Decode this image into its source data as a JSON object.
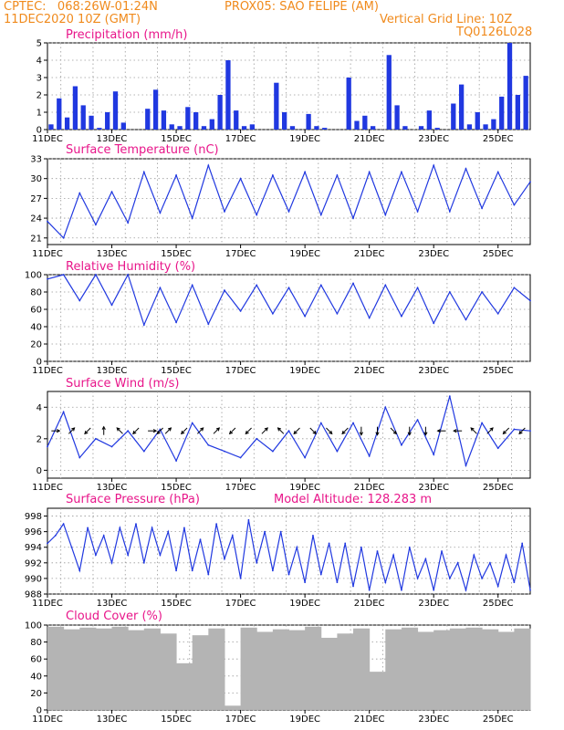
{
  "header": {
    "line1_left": "CPTEC:   068:26W-01:24N",
    "line1_right": "PROX05: SAO FELIPE (AM)",
    "line2_left": "11DEC2020 10Z (GMT)",
    "line2_right": "Vertical Grid Line: 10Z",
    "line3_right": "TQ0126L028"
  },
  "colors": {
    "header": "#f08a1c",
    "title": "#e8168a",
    "series": "#2038e0",
    "cloud": "#b4b4b4"
  },
  "chart_data": [
    {
      "type": "bar",
      "title": "Precipitation (mm/h)",
      "ylim": [
        0,
        5
      ],
      "yticks": [
        0,
        1,
        2,
        3,
        4,
        5
      ],
      "xticks": [
        "11DEC",
        "13DEC",
        "15DEC",
        "17DEC",
        "19DEC",
        "21DEC",
        "23DEC",
        "25DEC"
      ],
      "x": [
        "11DEC 00Z",
        "11DEC 06Z",
        "11DEC 12Z",
        "11DEC 18Z",
        "12DEC 00Z",
        "12DEC 06Z",
        "12DEC 12Z",
        "12DEC 18Z",
        "13DEC 00Z",
        "13DEC 06Z",
        "13DEC 12Z",
        "13DEC 18Z",
        "14DEC 00Z",
        "14DEC 06Z",
        "14DEC 12Z",
        "14DEC 18Z",
        "15DEC 00Z",
        "15DEC 06Z",
        "15DEC 12Z",
        "15DEC 18Z",
        "16DEC 00Z",
        "16DEC 06Z",
        "16DEC 12Z",
        "16DEC 18Z",
        "17DEC 00Z",
        "17DEC 06Z",
        "17DEC 12Z",
        "17DEC 18Z",
        "18DEC 00Z",
        "18DEC 06Z",
        "18DEC 12Z",
        "18DEC 18Z",
        "19DEC 00Z",
        "19DEC 06Z",
        "19DEC 12Z",
        "19DEC 18Z",
        "20DEC 00Z",
        "20DEC 06Z",
        "20DEC 12Z",
        "20DEC 18Z",
        "21DEC 00Z",
        "21DEC 06Z",
        "21DEC 12Z",
        "21DEC 18Z",
        "22DEC 00Z",
        "22DEC 06Z",
        "22DEC 12Z",
        "22DEC 18Z",
        "23DEC 00Z",
        "23DEC 06Z",
        "23DEC 12Z",
        "23DEC 18Z",
        "24DEC 00Z",
        "24DEC 06Z",
        "24DEC 12Z",
        "24DEC 18Z",
        "25DEC 00Z",
        "25DEC 06Z",
        "25DEC 12Z",
        "25DEC 18Z"
      ],
      "values": [
        0.3,
        1.8,
        0.7,
        2.5,
        1.4,
        0.8,
        0.1,
        1.0,
        2.2,
        0.4,
        0.0,
        0.0,
        1.2,
        2.3,
        1.1,
        0.3,
        0.2,
        1.3,
        1.0,
        0.2,
        0.6,
        2.0,
        4.0,
        1.1,
        0.2,
        0.3,
        0.0,
        0.0,
        2.7,
        1.0,
        0.2,
        0.0,
        0.9,
        0.2,
        0.1,
        0.0,
        0.0,
        3.0,
        0.5,
        0.8,
        0.2,
        0.0,
        4.3,
        1.4,
        0.2,
        0.0,
        0.2,
        1.1,
        0.1,
        0.0,
        1.5,
        2.6,
        0.3,
        1.0,
        0.3,
        0.6,
        1.9,
        5.0,
        2.0,
        3.1
      ]
    },
    {
      "type": "line",
      "title": "Surface Temperature (nC)",
      "ylim": [
        20,
        33
      ],
      "yticks": [
        21,
        24,
        27,
        30,
        33
      ],
      "xticks": [
        "11DEC",
        "13DEC",
        "15DEC",
        "17DEC",
        "19DEC",
        "21DEC",
        "23DEC",
        "25DEC"
      ],
      "x": [
        "11DEC 00Z",
        "11DEC 12Z",
        "12DEC 00Z",
        "12DEC 12Z",
        "13DEC 00Z",
        "13DEC 12Z",
        "14DEC 00Z",
        "14DEC 12Z",
        "15DEC 00Z",
        "15DEC 12Z",
        "16DEC 00Z",
        "16DEC 12Z",
        "17DEC 00Z",
        "17DEC 12Z",
        "18DEC 00Z",
        "18DEC 12Z",
        "19DEC 00Z",
        "19DEC 12Z",
        "20DEC 00Z",
        "20DEC 12Z",
        "21DEC 00Z",
        "21DEC 12Z",
        "22DEC 00Z",
        "22DEC 12Z",
        "23DEC 00Z",
        "23DEC 12Z",
        "24DEC 00Z",
        "24DEC 12Z",
        "25DEC 00Z",
        "25DEC 12Z",
        "26DEC 00Z"
      ],
      "values": [
        23.5,
        21.0,
        27.8,
        23.0,
        28.0,
        23.3,
        31.0,
        24.8,
        30.5,
        24.0,
        32.0,
        25.0,
        30.0,
        24.5,
        30.5,
        25.0,
        31.0,
        24.5,
        30.5,
        24.0,
        31.0,
        24.5,
        31.0,
        25.0,
        32.0,
        25.0,
        31.5,
        25.5,
        31.0,
        26.0,
        29.5
      ]
    },
    {
      "type": "line",
      "title": "Relative Humidity (%)",
      "ylim": [
        0,
        100
      ],
      "yticks": [
        0,
        20,
        40,
        60,
        80,
        100
      ],
      "xticks": [
        "11DEC",
        "13DEC",
        "15DEC",
        "17DEC",
        "19DEC",
        "21DEC",
        "23DEC",
        "25DEC"
      ],
      "x": [
        "11DEC 00Z",
        "11DEC 12Z",
        "12DEC 00Z",
        "12DEC 12Z",
        "13DEC 00Z",
        "13DEC 12Z",
        "14DEC 00Z",
        "14DEC 12Z",
        "15DEC 00Z",
        "15DEC 12Z",
        "16DEC 00Z",
        "16DEC 12Z",
        "17DEC 00Z",
        "17DEC 12Z",
        "18DEC 00Z",
        "18DEC 12Z",
        "19DEC 00Z",
        "19DEC 12Z",
        "20DEC 00Z",
        "20DEC 12Z",
        "21DEC 00Z",
        "21DEC 12Z",
        "22DEC 00Z",
        "22DEC 12Z",
        "23DEC 00Z",
        "23DEC 12Z",
        "24DEC 00Z",
        "24DEC 12Z",
        "25DEC 00Z",
        "25DEC 12Z",
        "26DEC 00Z"
      ],
      "values": [
        95,
        100,
        70,
        100,
        65,
        100,
        42,
        85,
        45,
        88,
        43,
        82,
        58,
        88,
        55,
        85,
        52,
        88,
        55,
        90,
        50,
        88,
        52,
        85,
        44,
        80,
        48,
        80,
        55,
        85,
        70
      ]
    },
    {
      "type": "line",
      "title": "Surface Wind (m/s)",
      "ylim": [
        -0.5,
        5
      ],
      "yticks": [
        0,
        2,
        4
      ],
      "xticks": [
        "11DEC",
        "13DEC",
        "15DEC",
        "17DEC",
        "19DEC",
        "21DEC",
        "23DEC",
        "25DEC"
      ],
      "x": [
        "11DEC 00Z",
        "11DEC 12Z",
        "12DEC 00Z",
        "12DEC 12Z",
        "13DEC 00Z",
        "13DEC 12Z",
        "14DEC 00Z",
        "14DEC 12Z",
        "15DEC 00Z",
        "15DEC 12Z",
        "16DEC 00Z",
        "16DEC 12Z",
        "17DEC 00Z",
        "17DEC 12Z",
        "18DEC 00Z",
        "18DEC 12Z",
        "19DEC 00Z",
        "19DEC 12Z",
        "20DEC 00Z",
        "20DEC 12Z",
        "21DEC 00Z",
        "21DEC 12Z",
        "22DEC 00Z",
        "22DEC 12Z",
        "23DEC 00Z",
        "23DEC 12Z",
        "24DEC 00Z",
        "24DEC 12Z",
        "25DEC 00Z",
        "25DEC 12Z",
        "26DEC 00Z"
      ],
      "values": [
        1.5,
        3.7,
        0.8,
        2.0,
        1.5,
        2.5,
        1.2,
        2.6,
        0.6,
        3.0,
        1.6,
        1.2,
        0.8,
        2.0,
        1.2,
        2.5,
        0.8,
        3.0,
        1.2,
        3.0,
        0.9,
        4.0,
        1.6,
        3.2,
        1.0,
        4.7,
        0.3,
        3.0,
        1.4,
        2.6,
        2.5
      ],
      "wind_barbs": [
        {
          "x": "11DEC 06Z",
          "dir": "E"
        },
        {
          "x": "11DEC 18Z",
          "dir": "NE"
        },
        {
          "x": "12DEC 06Z",
          "dir": "SW"
        },
        {
          "x": "12DEC 18Z",
          "dir": "N"
        },
        {
          "x": "13DEC 06Z",
          "dir": "NW"
        },
        {
          "x": "13DEC 18Z",
          "dir": "SW"
        },
        {
          "x": "14DEC 06Z",
          "dir": "E"
        },
        {
          "x": "14DEC 12Z",
          "dir": "SW"
        },
        {
          "x": "14DEC 18Z",
          "dir": "NE"
        },
        {
          "x": "15DEC 06Z",
          "dir": "SW"
        },
        {
          "x": "15DEC 18Z",
          "dir": "NE"
        },
        {
          "x": "16DEC 06Z",
          "dir": "NE"
        },
        {
          "x": "16DEC 18Z",
          "dir": "SW"
        },
        {
          "x": "17DEC 06Z",
          "dir": "SW"
        },
        {
          "x": "17DEC 18Z",
          "dir": "NE"
        },
        {
          "x": "18DEC 06Z",
          "dir": "NW"
        },
        {
          "x": "18DEC 18Z",
          "dir": "SW"
        },
        {
          "x": "19DEC 06Z",
          "dir": "SE"
        },
        {
          "x": "19DEC 18Z",
          "dir": "SE"
        },
        {
          "x": "20DEC 06Z",
          "dir": "SW"
        },
        {
          "x": "20DEC 18Z",
          "dir": "S"
        },
        {
          "x": "21DEC 06Z",
          "dir": "S"
        },
        {
          "x": "21DEC 18Z",
          "dir": "SE"
        },
        {
          "x": "22DEC 06Z",
          "dir": "S"
        },
        {
          "x": "22DEC 18Z",
          "dir": "S"
        },
        {
          "x": "23DEC 06Z",
          "dir": "W"
        },
        {
          "x": "23DEC 18Z",
          "dir": "W"
        },
        {
          "x": "24DEC 06Z",
          "dir": "NW"
        },
        {
          "x": "24DEC 18Z",
          "dir": "NE"
        },
        {
          "x": "25DEC 06Z",
          "dir": "SW"
        },
        {
          "x": "25DEC 18Z",
          "dir": "SW"
        }
      ]
    },
    {
      "type": "line",
      "title": "Surface Pressure (hPa)",
      "annotation": "Model Altitude: 128.283 m",
      "ylim": [
        988,
        999
      ],
      "yticks": [
        988,
        990,
        992,
        994,
        996,
        998
      ],
      "xticks": [
        "11DEC",
        "13DEC",
        "15DEC",
        "17DEC",
        "19DEC",
        "21DEC",
        "23DEC",
        "25DEC"
      ],
      "x": [
        "11DEC 00Z",
        "11DEC 06Z",
        "11DEC 12Z",
        "11DEC 18Z",
        "12DEC 00Z",
        "12DEC 06Z",
        "12DEC 12Z",
        "12DEC 18Z",
        "13DEC 00Z",
        "13DEC 06Z",
        "13DEC 12Z",
        "13DEC 18Z",
        "14DEC 00Z",
        "14DEC 06Z",
        "14DEC 12Z",
        "14DEC 18Z",
        "15DEC 00Z",
        "15DEC 06Z",
        "15DEC 12Z",
        "15DEC 18Z",
        "16DEC 00Z",
        "16DEC 06Z",
        "16DEC 12Z",
        "16DEC 18Z",
        "17DEC 00Z",
        "17DEC 06Z",
        "17DEC 12Z",
        "17DEC 18Z",
        "18DEC 00Z",
        "18DEC 06Z",
        "18DEC 12Z",
        "18DEC 18Z",
        "19DEC 00Z",
        "19DEC 06Z",
        "19DEC 12Z",
        "19DEC 18Z",
        "20DEC 00Z",
        "20DEC 06Z",
        "20DEC 12Z",
        "20DEC 18Z",
        "21DEC 00Z",
        "21DEC 06Z",
        "21DEC 12Z",
        "21DEC 18Z",
        "22DEC 00Z",
        "22DEC 06Z",
        "22DEC 12Z",
        "22DEC 18Z",
        "23DEC 00Z",
        "23DEC 06Z",
        "23DEC 12Z",
        "23DEC 18Z",
        "24DEC 00Z",
        "24DEC 06Z",
        "24DEC 12Z",
        "24DEC 18Z",
        "25DEC 00Z",
        "25DEC 06Z",
        "25DEC 12Z",
        "25DEC 18Z",
        "26DEC 00Z"
      ],
      "values": [
        994.5,
        995.5,
        997.0,
        994.0,
        991.0,
        996.5,
        993.0,
        995.5,
        992.0,
        996.5,
        993.0,
        997.0,
        992.0,
        996.5,
        993.0,
        996.0,
        991.0,
        996.5,
        991.0,
        995.0,
        990.5,
        997.0,
        992.5,
        995.5,
        990.0,
        997.5,
        992.0,
        996.0,
        991.0,
        996.0,
        990.5,
        994.0,
        989.5,
        995.5,
        990.5,
        994.5,
        989.5,
        994.5,
        989.0,
        994.0,
        988.5,
        993.5,
        989.5,
        993.0,
        988.5,
        994.0,
        990.0,
        992.5,
        988.5,
        993.5,
        990.0,
        992.0,
        988.5,
        993.0,
        990.0,
        992.0,
        989.0,
        993.0,
        989.5,
        994.5,
        988.5
      ]
    },
    {
      "type": "bar",
      "title": "Cloud Cover (%)",
      "ylim": [
        0,
        100
      ],
      "yticks": [
        0,
        20,
        40,
        60,
        80,
        100
      ],
      "xticks": [
        "11DEC",
        "13DEC",
        "15DEC",
        "17DEC",
        "19DEC",
        "21DEC",
        "23DEC",
        "25DEC"
      ],
      "x": [
        "11DEC 00Z",
        "11DEC 12Z",
        "12DEC 00Z",
        "12DEC 12Z",
        "13DEC 00Z",
        "13DEC 12Z",
        "14DEC 00Z",
        "14DEC 12Z",
        "15DEC 00Z",
        "15DEC 12Z",
        "16DEC 00Z",
        "16DEC 12Z",
        "17DEC 00Z",
        "17DEC 12Z",
        "18DEC 00Z",
        "18DEC 12Z",
        "19DEC 00Z",
        "19DEC 12Z",
        "20DEC 00Z",
        "20DEC 12Z",
        "21DEC 00Z",
        "21DEC 12Z",
        "22DEC 00Z",
        "22DEC 12Z",
        "23DEC 00Z",
        "23DEC 12Z",
        "24DEC 00Z",
        "24DEC 12Z",
        "25DEC 00Z",
        "25DEC 12Z"
      ],
      "values": [
        98,
        95,
        97,
        96,
        98,
        94,
        96,
        90,
        55,
        88,
        96,
        5,
        97,
        92,
        95,
        94,
        98,
        85,
        90,
        96,
        45,
        95,
        97,
        92,
        94,
        96,
        97,
        95,
        92,
        96
      ]
    }
  ]
}
